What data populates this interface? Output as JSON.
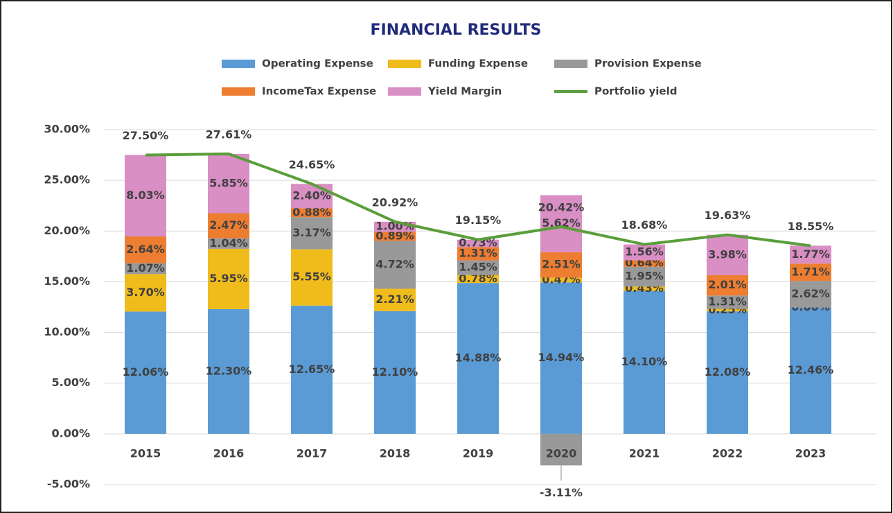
{
  "chart_data": {
    "type": "bar",
    "stacked": true,
    "title": "FINANCIAL RESULTS",
    "categories": [
      "2015",
      "2016",
      "2017",
      "2018",
      "2019",
      "2020",
      "2021",
      "2022",
      "2023"
    ],
    "series": [
      {
        "name": "Operating Expense",
        "color": "#5b9bd5",
        "values": [
          12.06,
          12.3,
          12.65,
          12.1,
          14.88,
          14.94,
          14.1,
          12.08,
          12.46
        ],
        "value_labels": [
          "12.06%",
          "12.30%",
          "12.65%",
          "12.10%",
          "14.88%",
          "14.94%",
          "14.10%",
          "12.08%",
          "12.46%"
        ]
      },
      {
        "name": "Funding Expense",
        "color": "#f0bc1c",
        "values": [
          3.7,
          5.95,
          5.55,
          2.21,
          0.78,
          0.47,
          0.43,
          0.25,
          0.0
        ],
        "value_labels": [
          "3.70%",
          "5.95%",
          "5.55%",
          "2.21%",
          "0.78%",
          "0.47%",
          "0.43%",
          "0.25%",
          "0.00%"
        ]
      },
      {
        "name": "Provision Expense",
        "color": "#999999",
        "values": [
          1.07,
          1.04,
          3.17,
          4.72,
          1.45,
          -3.11,
          1.95,
          1.31,
          2.62
        ],
        "value_labels": [
          "1.07%",
          "1.04%",
          "3.17%",
          "4.72%",
          "1.45%",
          "-3.11%",
          "1.95%",
          "1.31%",
          "2.62%"
        ]
      },
      {
        "name": "IncomeTax Expense",
        "color": "#ed7d31",
        "values": [
          2.64,
          2.47,
          0.88,
          0.89,
          1.31,
          2.51,
          0.64,
          2.01,
          1.71
        ],
        "value_labels": [
          "2.64%",
          "2.47%",
          "0.88%",
          "0.89%",
          "1.31%",
          "2.51%",
          "0.64%",
          "2.01%",
          "1.71%"
        ]
      },
      {
        "name": "Yield Margin",
        "color": "#d98ec4",
        "values": [
          8.03,
          5.85,
          2.4,
          1.0,
          0.73,
          5.62,
          1.56,
          3.98,
          1.77
        ],
        "value_labels": [
          "8.03%",
          "5.85%",
          "2.40%",
          "1.00%",
          "0.73%",
          "5.62%",
          "1.56%",
          "3.98%",
          "1.77%"
        ]
      },
      {
        "name": "Portfolio yield",
        "type": "line",
        "color": "#5a9e3a",
        "values": [
          27.5,
          27.61,
          24.65,
          20.92,
          19.15,
          20.42,
          18.68,
          19.63,
          18.55
        ],
        "value_labels": [
          "27.50%",
          "27.61%",
          "24.65%",
          "20.92%",
          "19.15%",
          "20.42%",
          "18.68%",
          "19.63%",
          "18.55%"
        ]
      }
    ],
    "ylim": [
      -5,
      30
    ],
    "yticks": [
      {
        "value": -5,
        "label": "-5.00%"
      },
      {
        "value": 0,
        "label": "0.00%"
      },
      {
        "value": 5,
        "label": "5.00%"
      },
      {
        "value": 10,
        "label": "10.00%"
      },
      {
        "value": 15,
        "label": "15.00%"
      },
      {
        "value": 20,
        "label": "20.00%"
      },
      {
        "value": 25,
        "label": "25.00%"
      },
      {
        "value": 30,
        "label": "30.00%"
      }
    ],
    "grid": true,
    "legend": "top"
  }
}
